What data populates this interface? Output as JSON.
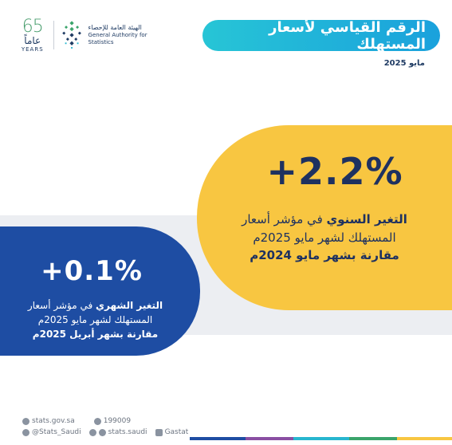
{
  "logo": {
    "years_number": "65",
    "years_ar": "عاماً",
    "years_en": "YEARS",
    "org_name_ar": "الهيئة العامة للإحصاء",
    "org_name_en": "General Authority for Statistics"
  },
  "header": {
    "title": "الرقم القياسي لأسعار المستهلك",
    "date": "مايو 2025"
  },
  "annual": {
    "value": "+2.2%",
    "label_bold": "التغير السنوي",
    "label_rest": " في مؤشر أسعار",
    "line2": "المستهلك لشهر مايو 2025م",
    "line3": "مقارنة بشهر مايو 2024م"
  },
  "monthly": {
    "value": "+0.1%",
    "label_bold": "التغير الشهري",
    "label_rest": " في مؤشر أسعار",
    "line2": "المستهلك لشهر مايو 2025م",
    "line3": "مقارنة بشهر أبريل 2025م"
  },
  "footer": {
    "website": "stats.gov.sa",
    "phone": "199009",
    "twitter": "@Stats_Saudi",
    "social": "stats.saudi",
    "linkedin": "Gastat"
  },
  "colors": {
    "banner_start": "#27c5d6",
    "banner_end": "#1aa1dc",
    "annual_card": "#f8c641",
    "monthly_card": "#1e4da3",
    "text_dark": "#1e3160",
    "strip": "#eceef2"
  }
}
